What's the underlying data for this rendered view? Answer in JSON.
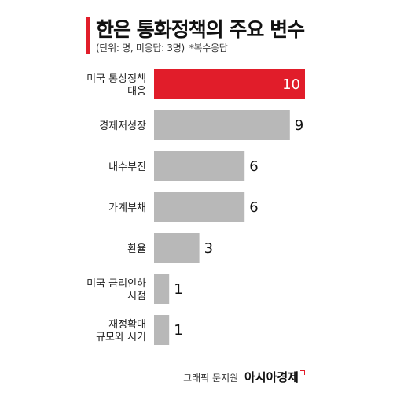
{
  "header": {
    "title": "한은 통화정책의 주요 변수",
    "subtitle": "(단위: 명, 미응답: 3명)",
    "note": "*복수응답"
  },
  "footer": {
    "credit": "그래픽 문지원",
    "brand": "아시아경제"
  },
  "colors": {
    "highlight": "#e11d2a",
    "bar": "#b8b8b8",
    "label": "#222222"
  },
  "chart_data": {
    "type": "bar",
    "orientation": "horizontal",
    "categories": [
      [
        "미국 통상정책",
        "대응"
      ],
      [
        "경제저성장"
      ],
      [
        "내수부진"
      ],
      [
        "가계부채"
      ],
      [
        "환율"
      ],
      [
        "미국 금리인하",
        "시점"
      ],
      [
        "재정확대",
        "규모와 시기"
      ]
    ],
    "values": [
      10,
      9,
      6,
      6,
      3,
      1,
      1
    ],
    "highlight_index": 0,
    "title": "한은 통화정책의 주요 변수",
    "xlim": [
      0,
      10
    ]
  }
}
